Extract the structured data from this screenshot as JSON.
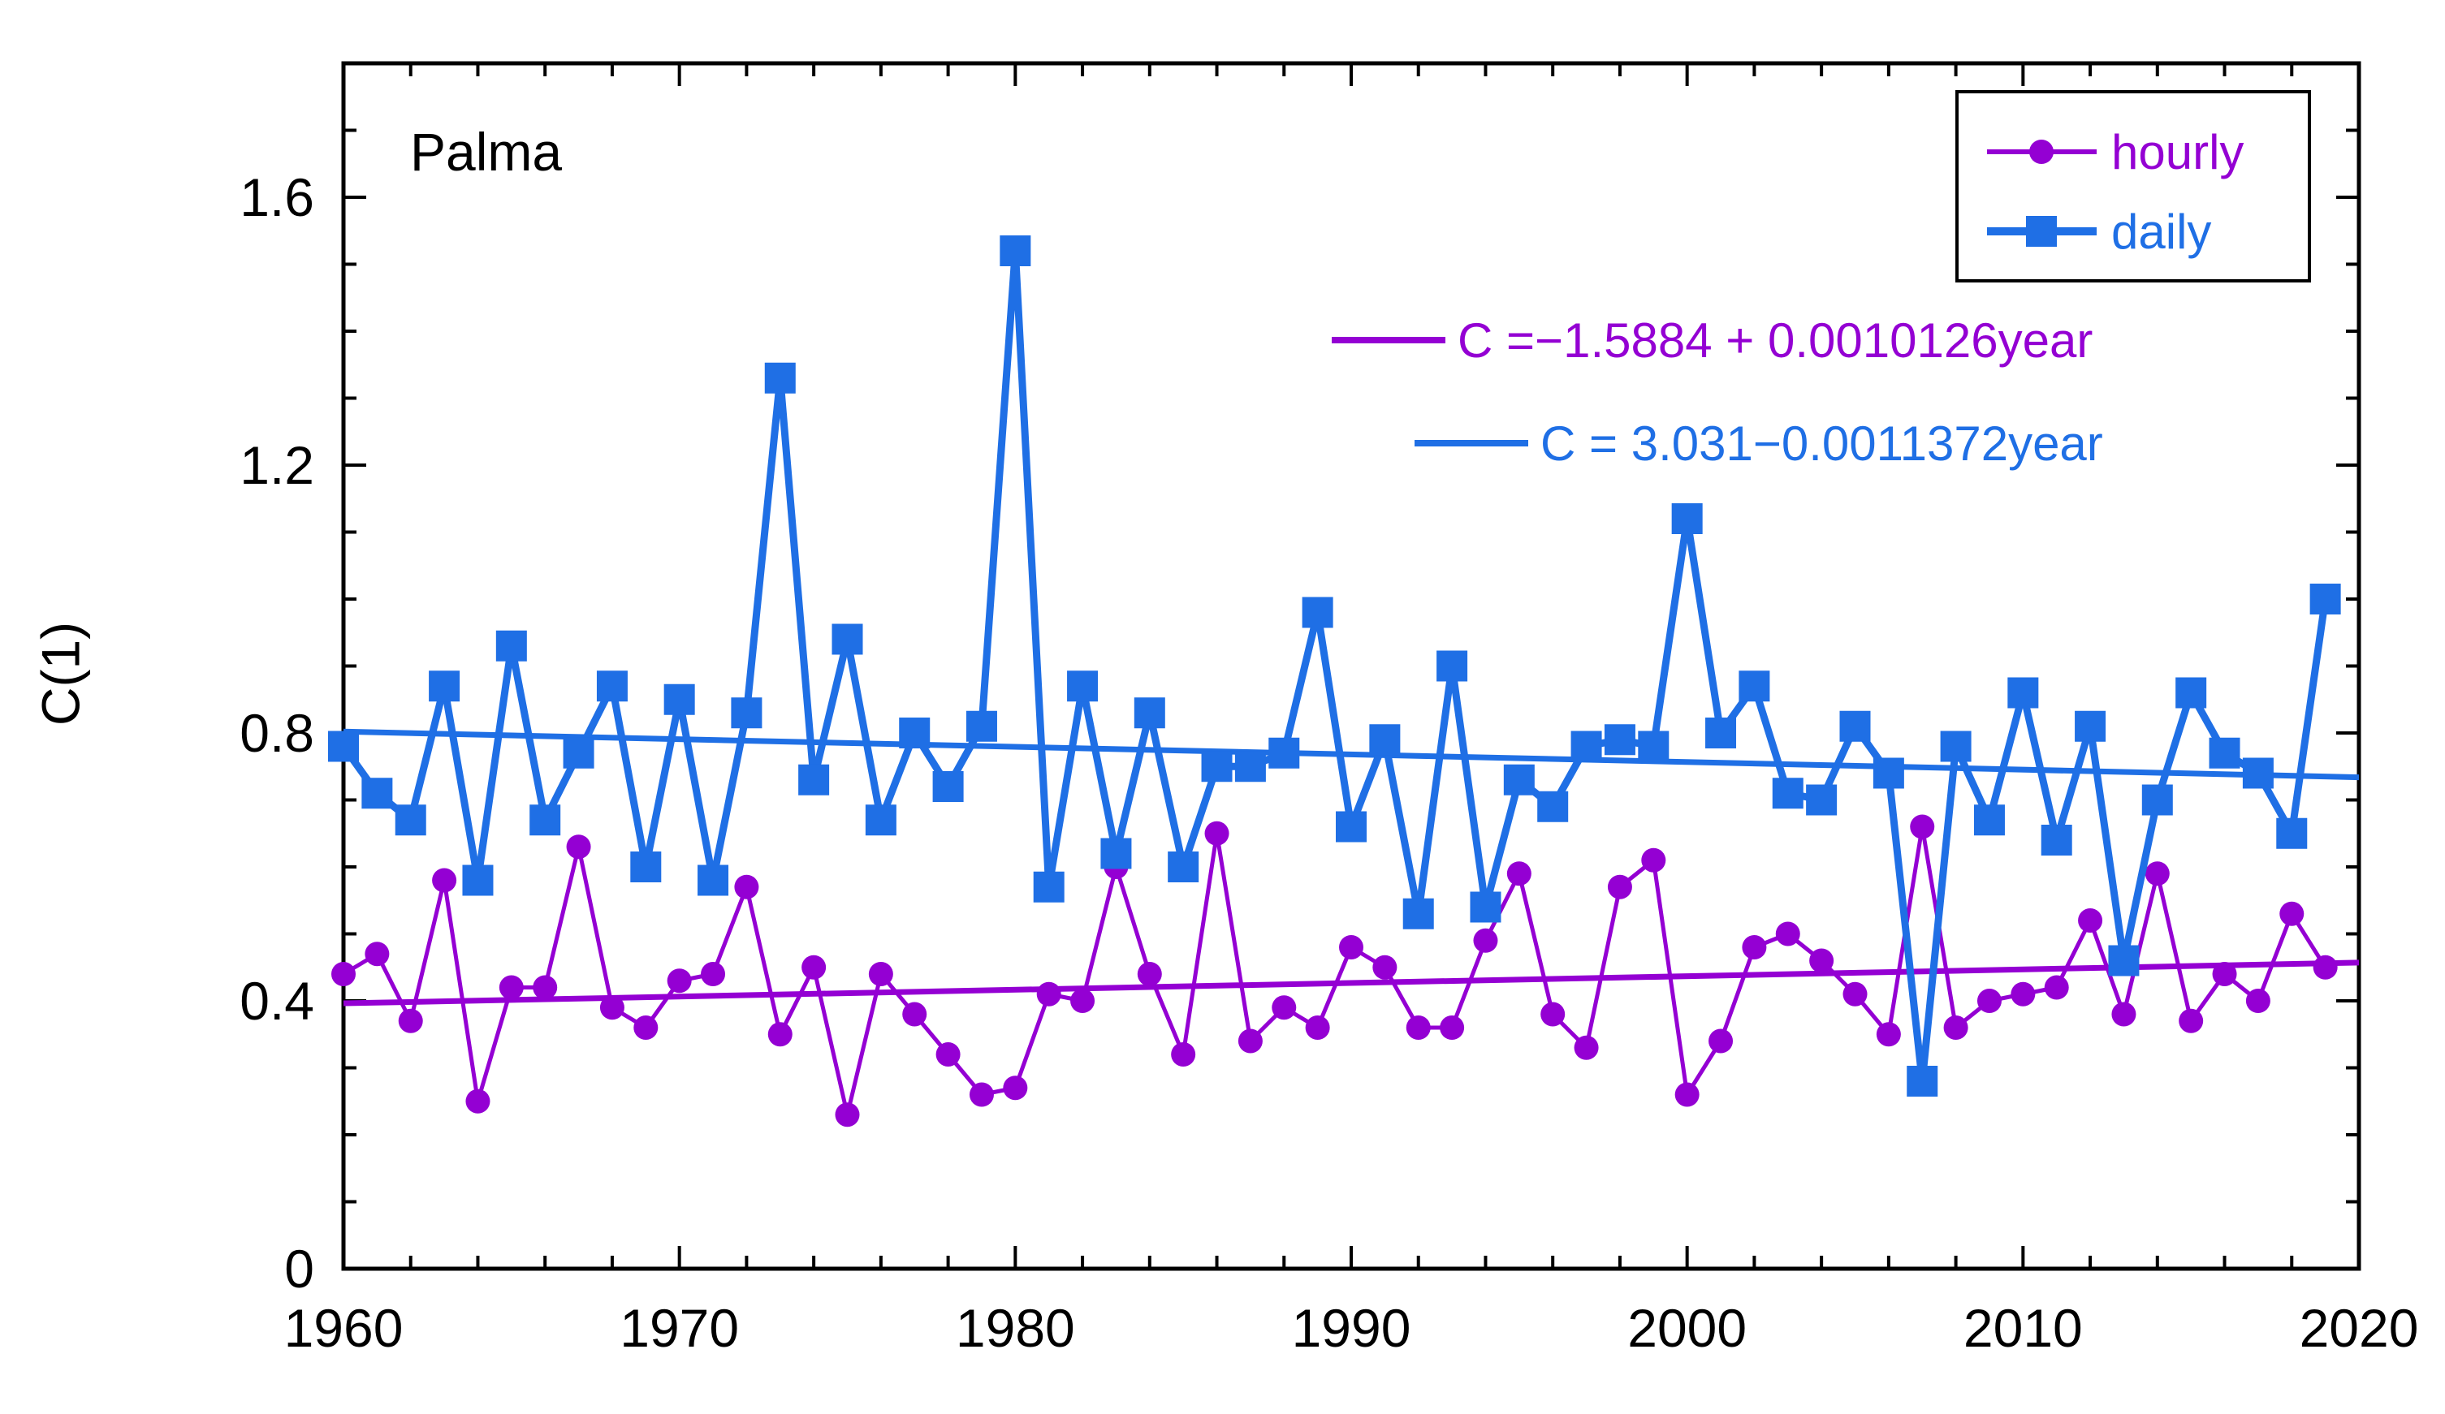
{
  "chart_data": {
    "type": "line",
    "station": "Palma",
    "xlabel": "",
    "ylabel": "C(1)",
    "xlim": [
      1960,
      2020
    ],
    "ylim": [
      0,
      1.8
    ],
    "x_ticks": [
      1960,
      1970,
      1980,
      1990,
      2000,
      2010,
      2020
    ],
    "y_ticks": [
      0,
      0.4,
      0.8,
      1.2,
      1.6
    ],
    "y_tick_labels": [
      "0",
      "0.4",
      "0.8",
      "1.2",
      "1.6"
    ],
    "x": [
      1960,
      1961,
      1962,
      1963,
      1964,
      1965,
      1966,
      1967,
      1968,
      1969,
      1970,
      1971,
      1972,
      1973,
      1974,
      1975,
      1976,
      1977,
      1978,
      1979,
      1980,
      1981,
      1982,
      1983,
      1984,
      1985,
      1986,
      1987,
      1988,
      1989,
      1990,
      1991,
      1992,
      1993,
      1994,
      1995,
      1996,
      1997,
      1998,
      1999,
      2000,
      2001,
      2002,
      2003,
      2004,
      2005,
      2006,
      2007,
      2008,
      2009,
      2010,
      2011,
      2012,
      2013,
      2014,
      2015,
      2016,
      2017,
      2018,
      2019
    ],
    "series": [
      {
        "name": "hourly",
        "color": "#9400d3",
        "marker": "circle",
        "values": [
          0.44,
          0.47,
          0.37,
          0.58,
          0.25,
          0.42,
          0.42,
          0.63,
          0.39,
          0.36,
          0.43,
          0.44,
          0.57,
          0.35,
          0.45,
          0.23,
          0.44,
          0.38,
          0.32,
          0.26,
          0.27,
          0.41,
          0.4,
          0.6,
          0.44,
          0.32,
          0.65,
          0.34,
          0.39,
          0.36,
          0.48,
          0.45,
          0.36,
          0.36,
          0.49,
          0.59,
          0.38,
          0.33,
          0.57,
          0.61,
          0.26,
          0.34,
          0.48,
          0.5,
          0.46,
          0.41,
          0.35,
          0.66,
          0.36,
          0.4,
          0.41,
          0.42,
          0.52,
          0.38,
          0.59,
          0.37,
          0.44,
          0.4,
          0.53,
          0.45
        ]
      },
      {
        "name": "daily",
        "color": "#1f6fe5",
        "marker": "square",
        "values": [
          0.78,
          0.71,
          0.67,
          0.87,
          0.58,
          0.93,
          0.67,
          0.77,
          0.87,
          0.6,
          0.85,
          0.58,
          0.83,
          1.33,
          0.73,
          0.94,
          0.67,
          0.8,
          0.72,
          0.81,
          1.52,
          0.57,
          0.87,
          0.62,
          0.83,
          0.6,
          0.75,
          0.75,
          0.77,
          0.98,
          0.66,
          0.79,
          0.53,
          0.9,
          0.54,
          0.73,
          0.69,
          0.78,
          0.79,
          0.78,
          1.12,
          0.8,
          0.87,
          0.71,
          0.7,
          0.81,
          0.74,
          0.28,
          0.78,
          0.67,
          0.86,
          0.64,
          0.81,
          0.46,
          0.7,
          0.86,
          0.77,
          0.74,
          0.65,
          1.0
        ]
      }
    ],
    "trend_lines": [
      {
        "series": "hourly",
        "color": "#9400d3",
        "equation": "C =−1.5884 + 0.0010126year",
        "intercept": -1.5884,
        "slope": 0.0010126
      },
      {
        "series": "daily",
        "color": "#1f6fe5",
        "equation": "C = 3.031−0.0011372year",
        "intercept": 3.031,
        "slope": -0.0011372
      }
    ],
    "legend": {
      "placement": "top-right",
      "entries": [
        {
          "label": "hourly",
          "color": "#9400d3",
          "marker": "circle"
        },
        {
          "label": "daily",
          "color": "#1f6fe5",
          "marker": "square"
        }
      ]
    }
  }
}
